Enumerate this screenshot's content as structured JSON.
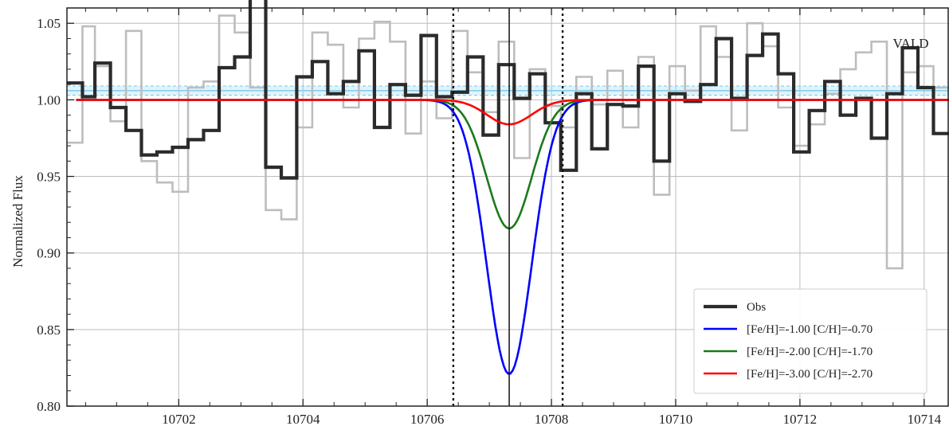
{
  "chart_data": {
    "type": "line",
    "title": "",
    "xlabel": "",
    "ylabel": "Normalized Flux",
    "xlim": [
      10700.2,
      10714.4
    ],
    "ylim": [
      0.8,
      1.06
    ],
    "grid": true,
    "legend_position": "lower-right",
    "xticks": [
      10702,
      10704,
      10706,
      10708,
      10710,
      10712,
      10714
    ],
    "yticks": [
      0.8,
      0.85,
      0.9,
      0.95,
      1.0,
      1.05
    ],
    "xtick_labels": [
      "10702",
      "10704",
      "10706",
      "10708",
      "10710",
      "10712",
      "10714"
    ],
    "ytick_labels": [
      "0.80",
      "0.85",
      "0.90",
      "0.95",
      "1.00",
      "1.05"
    ],
    "annotation": "VALD",
    "line_center": 10707.32,
    "window_lines": [
      10706.42,
      10708.18
    ],
    "continuum_band": {
      "center": 1.006,
      "upper": 1.009,
      "lower": 1.003,
      "color": "#87ceeb"
    },
    "observed": {
      "name": "Obs",
      "color": "#2b2b2b",
      "x": [
        10700.2,
        10700.45,
        10700.65,
        10700.9,
        10701.15,
        10701.4,
        10701.65,
        10701.9,
        10702.15,
        10702.4,
        10702.65,
        10702.9,
        10703.15,
        10703.4,
        10703.65,
        10703.9,
        10704.15,
        10704.4,
        10704.65,
        10704.9,
        10705.15,
        10705.4,
        10705.65,
        10705.9,
        10706.15,
        10706.4,
        10706.65,
        10706.9,
        10707.15,
        10707.4,
        10707.65,
        10707.9,
        10708.15,
        10708.4,
        10708.65,
        10708.9,
        10709.15,
        10709.4,
        10709.65,
        10709.9,
        10710.15,
        10710.4,
        10710.65,
        10710.9,
        10711.15,
        10711.4,
        10711.65,
        10711.9,
        10712.15,
        10712.4,
        10712.65,
        10712.9,
        10713.15,
        10713.4,
        10713.65,
        10713.9,
        10714.15,
        10714.4
      ],
      "y": [
        1.011,
        1.002,
        1.024,
        0.995,
        0.98,
        0.964,
        0.966,
        0.969,
        0.974,
        0.98,
        1.021,
        1.028,
        1.075,
        0.956,
        0.949,
        1.015,
        1.025,
        1.004,
        1.012,
        1.032,
        0.982,
        1.01,
        1.003,
        1.042,
        1.002,
        1.005,
        1.028,
        0.977,
        1.023,
        1.001,
        1.017,
        0.985,
        0.954,
        1.004,
        0.968,
        0.997,
        0.996,
        1.022,
        0.96,
        1.004,
        0.999,
        1.01,
        1.04,
        1.001,
        1.029,
        1.043,
        1.017,
        0.966,
        0.993,
        1.012,
        0.99,
        1.001,
        0.975,
        1.004,
        1.034,
        1.008,
        0.978,
        0.978
      ]
    },
    "observed_background": {
      "name": "",
      "color": "#bdbdbd",
      "x": [
        10700.2,
        10700.45,
        10700.65,
        10700.9,
        10701.15,
        10701.4,
        10701.65,
        10701.9,
        10702.15,
        10702.4,
        10702.65,
        10702.9,
        10703.15,
        10703.4,
        10703.65,
        10703.9,
        10704.15,
        10704.4,
        10704.65,
        10704.9,
        10705.15,
        10705.4,
        10705.65,
        10705.9,
        10706.15,
        10706.4,
        10706.65,
        10706.9,
        10707.15,
        10707.4,
        10707.65,
        10707.9,
        10708.15,
        10708.4,
        10708.65,
        10708.9,
        10709.15,
        10709.4,
        10709.65,
        10709.9,
        10710.15,
        10710.4,
        10710.65,
        10710.9,
        10711.15,
        10711.4,
        10711.65,
        10711.9,
        10712.15,
        10712.4,
        10712.65,
        10712.9,
        10713.15,
        10713.4,
        10713.65,
        10713.9,
        10714.15,
        10714.4
      ],
      "y": [
        0.972,
        1.048,
        1.022,
        0.986,
        1.045,
        0.96,
        0.946,
        0.94,
        1.008,
        1.012,
        1.055,
        1.044,
        1.008,
        0.928,
        0.922,
        0.982,
        1.044,
        1.036,
        0.995,
        1.04,
        1.051,
        1.038,
        0.978,
        1.012,
        0.988,
        1.045,
        1.018,
        0.992,
        1.038,
        0.962,
        1.02,
        0.996,
        0.982,
        1.015,
        0.997,
        1.019,
        0.982,
        1.028,
        0.938,
        1.022,
        1.006,
        1.048,
        1.028,
        0.98,
        1.05,
        1.035,
        0.995,
        0.97,
        0.984,
        1.004,
        1.02,
        1.031,
        1.038,
        0.89,
        1.018,
        1.022,
        1.008,
        1.008
      ]
    },
    "series": [
      {
        "name": "[Fe/H]=-1.00 [C/H]=-0.70",
        "color": "#0000ff",
        "depth": 0.179,
        "sigma": 0.36
      },
      {
        "name": "[Fe/H]=-2.00 [C/H]=-1.70",
        "color": "#1a7a1a",
        "depth": 0.084,
        "sigma": 0.36
      },
      {
        "name": "[Fe/H]=-3.00 [C/H]=-2.70",
        "color": "#ff0000",
        "depth": 0.016,
        "sigma": 0.36
      }
    ],
    "model_continuum": 1.0
  }
}
